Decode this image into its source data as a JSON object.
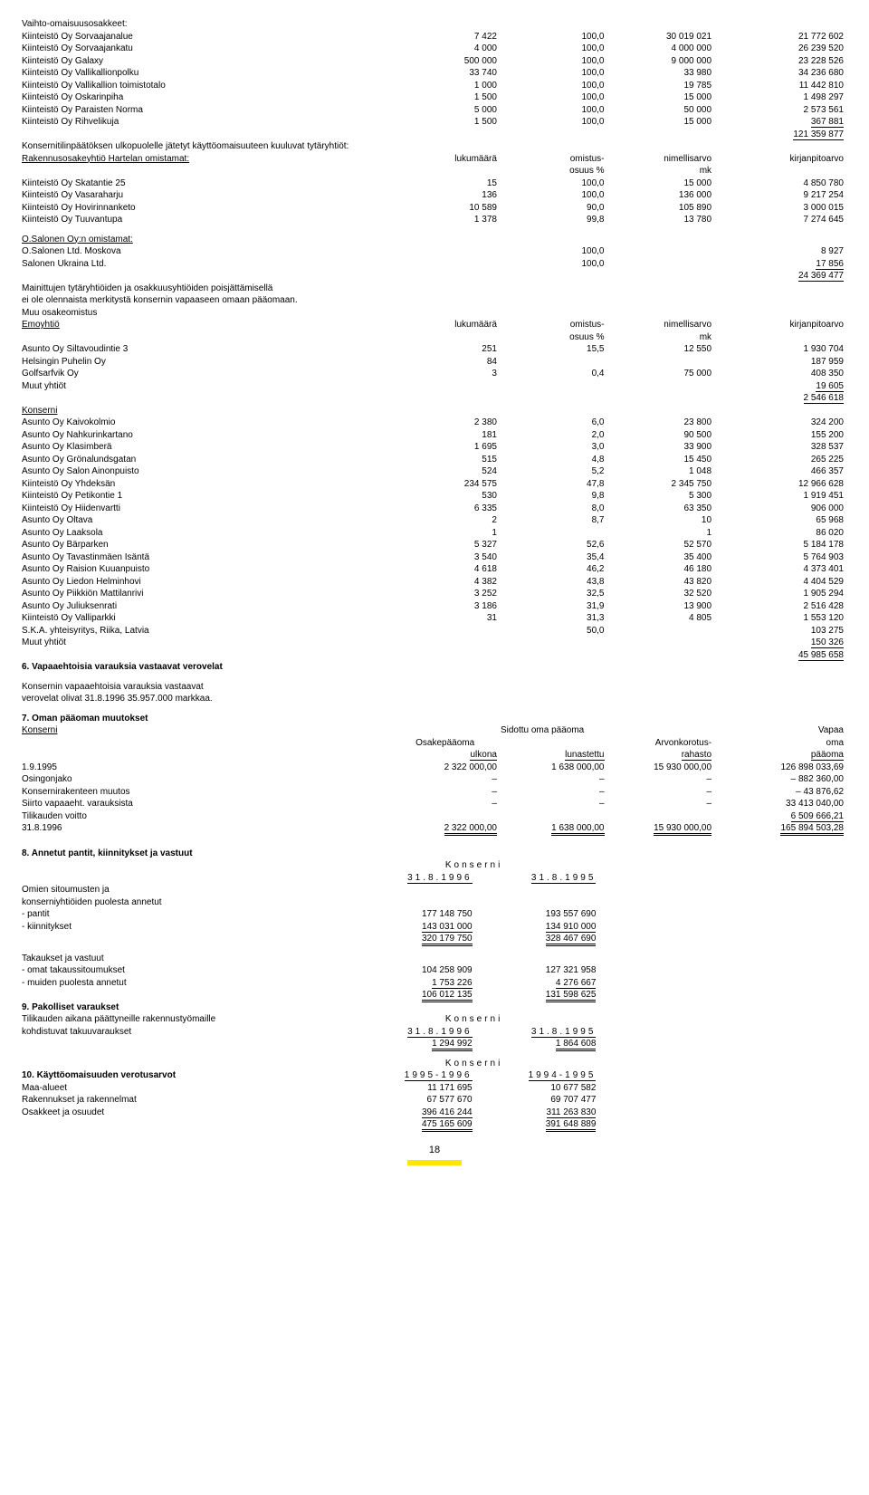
{
  "t1": {
    "title": "Vaihto-omaisuusosakkeet:",
    "rows": [
      {
        "name": "Kiinteistö Oy Sorvaajanalue",
        "a": "7 422",
        "b": "100,0",
        "c": "30 019 021",
        "d": "21 772 602"
      },
      {
        "name": "Kiinteistö Oy Sorvaajankatu",
        "a": "4 000",
        "b": "100,0",
        "c": "4 000 000",
        "d": "26 239 520"
      },
      {
        "name": "Kiinteistö Oy Galaxy",
        "a": "500 000",
        "b": "100,0",
        "c": "9 000 000",
        "d": "23 228 526"
      },
      {
        "name": "Kiinteistö Oy Vallikallionpolku",
        "a": "33 740",
        "b": "100,0",
        "c": "33 980",
        "d": "34 236 680"
      },
      {
        "name": "Kiinteistö Oy Vallikallion toimistotalo",
        "a": "1 000",
        "b": "100,0",
        "c": "19 785",
        "d": "11 442 810"
      },
      {
        "name": "Kiinteistö Oy Oskarinpiha",
        "a": "1 500",
        "b": "100,0",
        "c": "15 000",
        "d": "1 498 297"
      },
      {
        "name": "Kiinteistö Oy Paraisten Norma",
        "a": "5 000",
        "b": "100,0",
        "c": "50 000",
        "d": "2 573 561"
      },
      {
        "name": "Kiinteistö Oy Rihvelikuja",
        "a": "1 500",
        "b": "100,0",
        "c": "15 000",
        "d": "367 881"
      }
    ],
    "sum": "121 359 877"
  },
  "t2": {
    "intro": "Konsernitilinpäätöksen ulkopuolelle jätetyt käyttöomaisuuteen kuuluvat tytäryhtiöt:",
    "sub": "Rakennusosakeyhtiö Hartelan omistamat:",
    "h1": "lukumäärä",
    "h2a": "omistus-",
    "h2b": "osuus %",
    "h3a": "nimellisarvo",
    "h3b": "mk",
    "h4": "kirjanpitoarvo",
    "rows": [
      {
        "name": "Kiinteistö Oy Skatantie 25",
        "a": "15",
        "b": "100,0",
        "c": "15 000",
        "d": "4 850 780"
      },
      {
        "name": "Kiinteistö Oy Vasaraharju",
        "a": "136",
        "b": "100,0",
        "c": "136 000",
        "d": "9 217 254"
      },
      {
        "name": "Kiinteistö Oy Hovirinnanketo",
        "a": "10 589",
        "b": "90,0",
        "c": "105 890",
        "d": "3 000 015"
      },
      {
        "name": "Kiinteistö Oy Tuuvantupa",
        "a": "1 378",
        "b": "99,8",
        "c": "13 780",
        "d": "7 274 645"
      }
    ]
  },
  "t3": {
    "sub": "O.Salonen Oy:n omistamat:",
    "rows": [
      {
        "name": "O.Salonen Ltd. Moskova",
        "b": "100,0",
        "d": "8 927"
      },
      {
        "name": "Salonen Ukraina Ltd.",
        "b": "100,0",
        "d": "17 856"
      }
    ],
    "sum": "24 369 477",
    "note1": "Mainittujen tytäryhtiöiden ja osakkuusyhtiöiden poisjättämisellä",
    "note2": "ei ole olennaista merkitystä konsernin vapaaseen omaan pääomaan."
  },
  "t4": {
    "title": "Muu osakeomistus",
    "sub": "Emoyhtiö",
    "h1": "lukumäärä",
    "h2a": "omistus-",
    "h2b": "osuus %",
    "h3a": "nimellisarvo",
    "h3b": "mk",
    "h4": "kirjanpitoarvo",
    "rows": [
      {
        "name": "Asunto Oy Siltavoudintie 3",
        "a": "251",
        "b": "15,5",
        "c": "12 550",
        "d": "1 930 704"
      },
      {
        "name": "Helsingin Puhelin Oy",
        "a": "84",
        "b": "",
        "c": "",
        "d": "187 959"
      },
      {
        "name": "Golfsarfvik Oy",
        "a": "3",
        "b": "0,4",
        "c": "75 000",
        "d": "408 350"
      },
      {
        "name": "Muut yhtiöt",
        "a": "",
        "b": "",
        "c": "",
        "d": "19 605"
      }
    ],
    "sum": "2 546 618"
  },
  "t5": {
    "sub": "Konserni",
    "rows": [
      {
        "name": "Asunto Oy Kaivokolmio",
        "a": "2 380",
        "b": "6,0",
        "c": "23 800",
        "d": "324 200"
      },
      {
        "name": "Asunto Oy Nahkurinkartano",
        "a": "181",
        "b": "2,0",
        "c": "90 500",
        "d": "155 200"
      },
      {
        "name": "Asunto Oy Klasimberä",
        "a": "1 695",
        "b": "3,0",
        "c": "33 900",
        "d": "328 537"
      },
      {
        "name": "Asunto Oy Grönalundsgatan",
        "a": "515",
        "b": "4,8",
        "c": "15 450",
        "d": "265 225"
      },
      {
        "name": "Asunto Oy Salon Ainonpuisto",
        "a": "524",
        "b": "5,2",
        "c": "1 048",
        "d": "466 357"
      },
      {
        "name": "Kiinteistö Oy Yhdeksän",
        "a": "234 575",
        "b": "47,8",
        "c": "2 345 750",
        "d": "12 966 628"
      },
      {
        "name": "Kiinteistö Oy Petikontie 1",
        "a": "530",
        "b": "9,8",
        "c": "5 300",
        "d": "1 919 451"
      },
      {
        "name": "Kiinteistö Oy Hiidenvartti",
        "a": "6 335",
        "b": "8,0",
        "c": "63 350",
        "d": "906 000"
      },
      {
        "name": "Asunto Oy Oltava",
        "a": "2",
        "b": "8,7",
        "c": "10",
        "d": "65 968"
      },
      {
        "name": "Asunto Oy Laaksola",
        "a": "1",
        "b": "",
        "c": "1",
        "d": "86 020"
      },
      {
        "name": "Asunto Oy Bärparken",
        "a": "5 327",
        "b": "52,6",
        "c": "52 570",
        "d": "5 184 178"
      },
      {
        "name": "Asunto Oy Tavastinmäen Isäntä",
        "a": "3 540",
        "b": "35,4",
        "c": "35 400",
        "d": "5 764 903"
      },
      {
        "name": "Asunto Oy Raision Kuuanpuisto",
        "a": "4 618",
        "b": "46,2",
        "c": "46 180",
        "d": "4 373 401"
      },
      {
        "name": "Asunto Oy Liedon Helminhovi",
        "a": "4 382",
        "b": "43,8",
        "c": "43 820",
        "d": "4 404 529"
      },
      {
        "name": "Asunto Oy Piikkiön Mattilanrivi",
        "a": "3 252",
        "b": "32,5",
        "c": "32 520",
        "d": "1 905 294"
      },
      {
        "name": "Asunto Oy Juliuksenrati",
        "a": "3 186",
        "b": "31,9",
        "c": "13 900",
        "d": "2 516 428"
      },
      {
        "name": "Kiinteistö Oy Valliparkki",
        "a": "31",
        "b": "31,3",
        "c": "4 805",
        "d": "1 553 120"
      },
      {
        "name": "S.K.A. yhteisyritys, Riika, Latvia",
        "a": "",
        "b": "50,0",
        "c": "",
        "d": "103 275"
      },
      {
        "name": "Muut yhtiöt",
        "a": "",
        "b": "",
        "c": "",
        "d": "150 326"
      }
    ],
    "sum": "45 985 658"
  },
  "s6": {
    "title": "6. Vapaaehtoisia varauksia vastaavat verovelat",
    "l1": "Konsernin vapaaehtoisia varauksia vastaavat",
    "l2": "verovelat olivat 31.8.1996 35.957.000 markkaa."
  },
  "s7": {
    "title": "7. Oman pääoman muutokset",
    "sub": "Konserni",
    "hdr": {
      "c1": "Sidottu oma pääoma",
      "c2": "Vapaa",
      "r2a": "Osakepääoma",
      "r2c": "Arvonkorotus-",
      "r2d": "oma",
      "r3a": "ulkona",
      "r3b": "lunastettu",
      "r3c": "rahasto",
      "r3d": "pääoma"
    },
    "rows": [
      {
        "name": "1.9.1995",
        "a": "2 322 000,00",
        "b": "1 638 000,00",
        "c": "15 930 000,00",
        "d": "126 898 033,69"
      },
      {
        "name": "Osingonjako",
        "a": "–",
        "b": "–",
        "c": "–",
        "d": "– 882 360,00"
      },
      {
        "name": "Konsernirakenteen muutos",
        "a": "–",
        "b": "–",
        "c": "–",
        "d": "– 43 876,62"
      },
      {
        "name": "Siirto vapaaeht. varauksista",
        "a": "–",
        "b": "–",
        "c": "–",
        "d": "33 413 040,00"
      },
      {
        "name": "Tilikauden voitto",
        "a": "",
        "b": "",
        "c": "",
        "d": "6 509 666,21"
      }
    ],
    "tot": {
      "name": "31.8.1996",
      "a": "2 322 000,00",
      "b": "1 638 000,00",
      "c": "15 930 000,00",
      "d": "165 894 503,28"
    }
  },
  "s8": {
    "title": "8. Annetut pantit, kiinnitykset ja vastuut",
    "hdr": "Konserni",
    "d1": "31.8.1996",
    "d2": "31.8.1995",
    "g1": {
      "l1": "Omien sitoumusten ja",
      "l2": "konserniyhtiöiden puolesta annetut",
      "r": [
        {
          "name": "- pantit",
          "a": "177 148 750",
          "b": "193 557 690"
        },
        {
          "name": "- kiinnitykset",
          "a": "143 031 000",
          "b": "134 910 000"
        }
      ],
      "sum": {
        "a": "320 179 750",
        "b": "328 467 690"
      }
    },
    "g2": {
      "l1": "Takaukset ja vastuut",
      "r": [
        {
          "name": "- omat takaussitoumukset",
          "a": "104 258 909",
          "b": "127 321 958"
        },
        {
          "name": "- muiden puolesta annetut",
          "a": "1 753 226",
          "b": "4 276 667"
        }
      ],
      "sum": {
        "a": "106 012 135",
        "b": "131 598 625"
      }
    }
  },
  "s9": {
    "title": "9. Pakolliset varaukset",
    "hdr": "Konserni",
    "l1": "Tilikauden aikana päättyneille rakennustyömaille",
    "l2": "kohdistuvat takuuvaraukset",
    "d1": "31.8.1996",
    "d2": "31.8.1995",
    "a": "1 294 992",
    "b": "1 864 608"
  },
  "s10": {
    "title": "10. Käyttöomaisuuden verotusarvot",
    "hdr": "Konserni",
    "d1": "1995-1996",
    "d2": "1994-1995",
    "rows": [
      {
        "name": "Maa-alueet",
        "a": "11 171 695",
        "b": "10 677 582"
      },
      {
        "name": "Rakennukset ja rakennelmat",
        "a": "67 577 670",
        "b": "69 707 477"
      },
      {
        "name": "Osakkeet ja osuudet",
        "a": "396 416 244",
        "b": "311 263 830"
      }
    ],
    "sum": {
      "a": "475 165 609",
      "b": "391 648 889"
    }
  },
  "pagenum": "18"
}
